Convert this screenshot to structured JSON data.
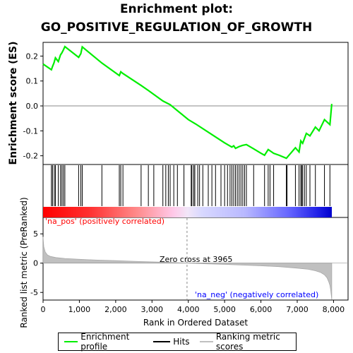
{
  "title_line1": "Enrichment plot:",
  "title_line2": "GO_POSITIVE_REGULATION_OF_GROWTH",
  "colors": {
    "profile": "#00ee00",
    "hits": "#000000",
    "ranking": "#c0c0c0",
    "pos_label": "#ff0000",
    "neg_label": "#0000ff"
  },
  "chart_data": {
    "type": "line",
    "x_axis": {
      "label": "Rank in Ordered Dataset",
      "range": [
        0,
        8400
      ],
      "ticks": [
        0,
        1000,
        2000,
        3000,
        4000,
        5000,
        6000,
        7000,
        8000
      ],
      "tick_labels": [
        "0",
        "1,000",
        "2,000",
        "3,000",
        "4,000",
        "5,000",
        "6,000",
        "7,000",
        "8,000"
      ]
    },
    "es_panel": {
      "ylabel": "Enrichment score (ES)",
      "ylim": [
        -0.235,
        0.255
      ],
      "yticks": [
        -0.2,
        -0.1,
        0.0,
        0.1,
        0.2
      ],
      "ytick_labels": [
        "-0.2",
        "-0.1",
        "0.0",
        "0.1",
        "0.2"
      ],
      "series_name": "Enrichment profile",
      "x": [
        0,
        230,
        260,
        300,
        340,
        420,
        480,
        520,
        560,
        600,
        980,
        1040,
        1080,
        1620,
        2100,
        2140,
        2200,
        2700,
        2900,
        3300,
        3500,
        4000,
        4200,
        4600,
        5000,
        5200,
        5250,
        5300,
        5400,
        5500,
        5600,
        5800,
        6000,
        6100,
        6200,
        6350,
        6500,
        6700,
        6950,
        7050,
        7100,
        7150,
        7250,
        7350,
        7500,
        7600,
        7750,
        7900,
        7950
      ],
      "y": [
        0.168,
        0.145,
        0.158,
        0.172,
        0.193,
        0.178,
        0.205,
        0.213,
        0.225,
        0.238,
        0.195,
        0.21,
        0.237,
        0.172,
        0.122,
        0.137,
        0.13,
        0.082,
        0.062,
        0.02,
        0.005,
        -0.055,
        -0.072,
        -0.11,
        -0.148,
        -0.165,
        -0.16,
        -0.17,
        -0.163,
        -0.158,
        -0.155,
        -0.172,
        -0.19,
        -0.198,
        -0.175,
        -0.19,
        -0.198,
        -0.21,
        -0.168,
        -0.185,
        -0.14,
        -0.15,
        -0.11,
        -0.12,
        -0.085,
        -0.1,
        -0.055,
        -0.075,
        0.008
      ]
    },
    "hits": [
      230,
      260,
      310,
      340,
      420,
      480,
      520,
      560,
      600,
      980,
      1040,
      1080,
      1620,
      2100,
      2140,
      2200,
      2700,
      2900,
      3050,
      3300,
      3380,
      3450,
      3500,
      3600,
      3700,
      3880,
      4080,
      4100,
      4150,
      4180,
      4260,
      4310,
      4400,
      4550,
      4650,
      4750,
      4900,
      5000,
      5080,
      5150,
      5200,
      5250,
      5300,
      5350,
      5400,
      5450,
      5500,
      5550,
      5600,
      5800,
      6100,
      6200,
      6250,
      6350,
      6700,
      6720,
      6950,
      7050,
      7100,
      7120,
      7150,
      7200,
      7250,
      7350,
      7500,
      7750,
      7900
    ],
    "ranking_panel": {
      "ylabel": "Ranked list metric (PreRanked)",
      "ylim": [
        -6.3,
        7.8
      ],
      "yticks": [
        -5,
        0,
        5
      ],
      "ytick_labels": [
        "-5",
        "0",
        "5"
      ],
      "series_name": "Ranking metric scores",
      "x": [
        0,
        20,
        60,
        120,
        200,
        350,
        600,
        1000,
        1500,
        2000,
        2500,
        3000,
        3500,
        3965,
        4500,
        5000,
        5500,
        6000,
        6500,
        7000,
        7300,
        7500,
        7650,
        7750,
        7820,
        7870,
        7900,
        7920,
        7940,
        7950
      ],
      "y": [
        4.5,
        2.8,
        1.9,
        1.4,
        1.15,
        0.95,
        0.8,
        0.65,
        0.52,
        0.42,
        0.32,
        0.22,
        0.12,
        0.0,
        -0.12,
        -0.22,
        -0.33,
        -0.45,
        -0.6,
        -0.85,
        -1.05,
        -1.3,
        -1.6,
        -2.0,
        -2.5,
        -3.2,
        -3.8,
        -4.5,
        -5.5,
        -6.2
      ]
    },
    "zero_cross_label": "Zero cross at 3965",
    "zero_cross_rank": 3965,
    "pos_label": "'na_pos' (positively correlated)",
    "neg_label": "'na_neg' (negatively correlated)",
    "n_genes": 7950
  },
  "legend": {
    "profile": "Enrichment profile",
    "hits": "Hits",
    "ranking": "Ranking metric scores"
  }
}
